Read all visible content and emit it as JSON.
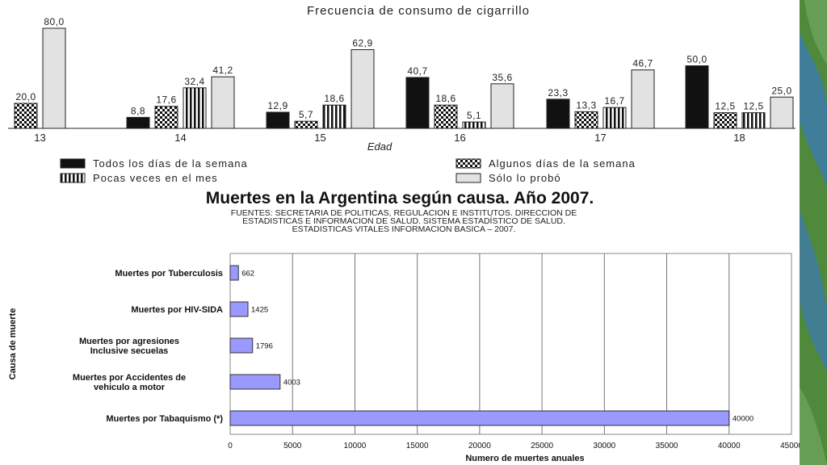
{
  "colors": {
    "bar_blue": "#9999ff",
    "bar_black": "#111111",
    "bar_light": "#e2e2e2",
    "grid": "#777777",
    "deco_green": "#4f8a3c",
    "deco_blue": "#3d7aa8"
  },
  "chart_data": [
    {
      "type": "bar",
      "title": "Frecuencia de consumo de cigarrillo",
      "xlabel": "Edad",
      "ylabel": "",
      "categories": [
        "13",
        "14",
        "15",
        "16",
        "17",
        "18"
      ],
      "series": [
        {
          "name": "Todos los días de la semana",
          "pattern": "solid-black",
          "values": [
            null,
            8.8,
            12.9,
            40.7,
            23.3,
            50.0
          ],
          "labels": [
            "",
            "8,8",
            "12,9",
            "40,7",
            "23,3",
            "50,0"
          ]
        },
        {
          "name": "Algunos días de la semana",
          "pattern": "checker",
          "values": [
            20.0,
            17.6,
            5.7,
            18.6,
            13.3,
            12.5
          ],
          "labels": [
            "20,0",
            "17,6",
            "5,7",
            "18,6",
            "13,3",
            "12,5"
          ]
        },
        {
          "name": "Pocas veces en el mes",
          "pattern": "vertical-stripes",
          "values": [
            null,
            32.4,
            18.6,
            5.1,
            16.7,
            12.5
          ],
          "labels": [
            "",
            "32,4",
            "18,6",
            "5,1",
            "16,7",
            "12,5"
          ]
        },
        {
          "name": "Sólo lo probó",
          "pattern": "light-gray",
          "values": [
            80.0,
            41.2,
            62.9,
            35.6,
            46.7,
            25.0
          ],
          "labels": [
            "80,0",
            "41,2",
            "62,9",
            "35,6",
            "46,7",
            "25,0"
          ]
        }
      ],
      "ylim": [
        0,
        80
      ],
      "legend_position": "bottom",
      "grid": false
    },
    {
      "type": "bar",
      "orientation": "horizontal",
      "title": "Muertes en la Argentina según causa. Año 2007.",
      "subtitle_lines": [
        "FUENTES: SECRETARIA DE POLITICAS, REGULACION E INSTITUTOS. DIRECCION DE",
        "ESTADISTICAS E INFORMACION DE SALUD. SISTEMA ESTADÍSTICO DE SALUD.",
        "ESTADISTICAS VITALES INFORMACION BASICA – 2007."
      ],
      "xlabel": "Numero de muertes anuales",
      "ylabel": "Causa de muerte",
      "categories": [
        [
          "Muertes por Tuberculosis"
        ],
        [
          "Muertes por HIV-SIDA"
        ],
        [
          "Muertes por agresiones",
          "Inclusive secuelas"
        ],
        [
          "Muertes por Accidentes de",
          "vehiculo a motor"
        ],
        [
          "Muertes por Tabaquismo (*)"
        ]
      ],
      "values": [
        662,
        1425,
        1796,
        4003,
        40000
      ],
      "value_labels": [
        "662",
        "1425",
        "1796",
        "4003",
        "40000"
      ],
      "xticks": [
        0,
        5000,
        10000,
        15000,
        20000,
        25000,
        30000,
        35000,
        40000,
        45000
      ],
      "xticks_labels": [
        "0",
        "5000",
        "10000",
        "15000",
        "20000",
        "25000",
        "30000",
        "35000",
        "40000",
        "45000"
      ],
      "xlim": [
        0,
        45000
      ],
      "grid": true,
      "legend_position": "none"
    }
  ]
}
